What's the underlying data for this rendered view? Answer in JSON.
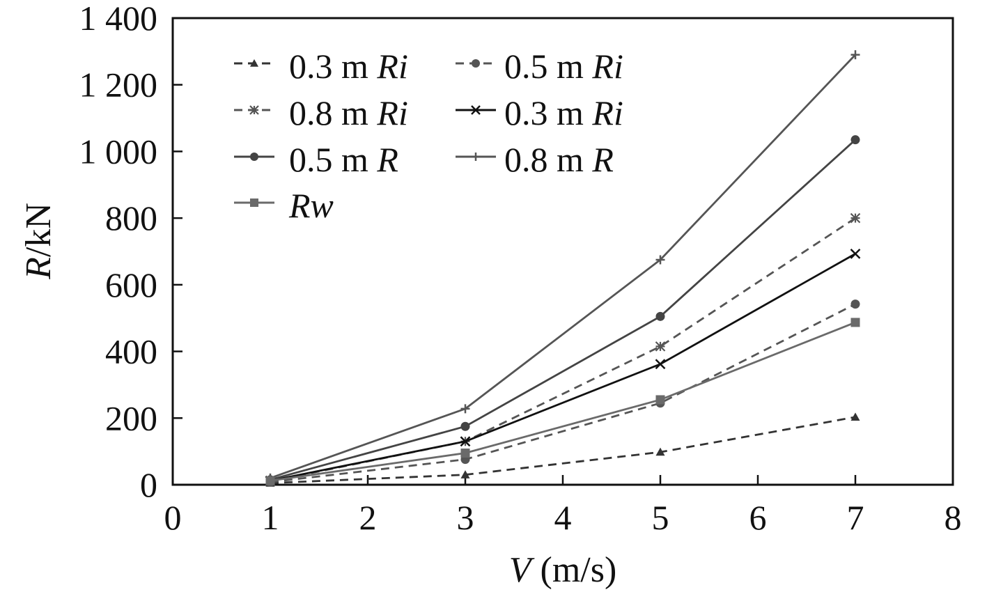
{
  "chart_data": {
    "type": "line",
    "xlabel": {
      "var": "V",
      "unit": " (m/s)"
    },
    "ylabel": {
      "var": "R",
      "unit": "/kN"
    },
    "xlim": [
      0,
      8
    ],
    "ylim": [
      0,
      1400
    ],
    "xticks": [
      "0",
      "1",
      "2",
      "3",
      "4",
      "5",
      "6",
      "7",
      "8"
    ],
    "yticks": [
      "0",
      "200",
      "400",
      "600",
      "800",
      "1 000",
      "1 200",
      "1 400"
    ],
    "grid": false,
    "legend_position": "top-left",
    "x": [
      1,
      3,
      5,
      7
    ],
    "series": [
      {
        "name": "0.3 m Ri",
        "label_main": "0.3 m ",
        "label_ital": "Ri",
        "values": [
          5,
          30,
          98,
          203
        ],
        "color": "#333333",
        "dash": "dashed",
        "marker": "triangle"
      },
      {
        "name": "0.5 m Ri",
        "label_main": "0.5 m ",
        "label_ital": "Ri",
        "values": [
          8,
          76,
          245,
          542
        ],
        "color": "#555555",
        "dash": "dashed",
        "marker": "circle"
      },
      {
        "name": "0.8 m Ri",
        "label_main": "0.8 m ",
        "label_ital": "Ri",
        "values": [
          10,
          130,
          415,
          800
        ],
        "color": "#555555",
        "dash": "dashed",
        "marker": "star"
      },
      {
        "name": "0.3 m Ri",
        "label_main": "0.3 m ",
        "label_ital": "Ri",
        "values": [
          12,
          130,
          362,
          693
        ],
        "color": "#111111",
        "dash": "solid",
        "marker": "x"
      },
      {
        "name": "0.5 m R",
        "label_main": "0.5 m ",
        "label_ital": "R",
        "values": [
          15,
          175,
          505,
          1035
        ],
        "color": "#444444",
        "dash": "solid",
        "marker": "circle"
      },
      {
        "name": "0.8 m R",
        "label_main": "0.8 m ",
        "label_ital": "R",
        "values": [
          20,
          228,
          675,
          1290
        ],
        "color": "#555555",
        "dash": "solid",
        "marker": "plus"
      },
      {
        "name": "Rw",
        "label_main": "",
        "label_ital": "Rw",
        "values": [
          12,
          95,
          255,
          487
        ],
        "color": "#6a6a6a",
        "dash": "solid",
        "marker": "square"
      }
    ]
  }
}
